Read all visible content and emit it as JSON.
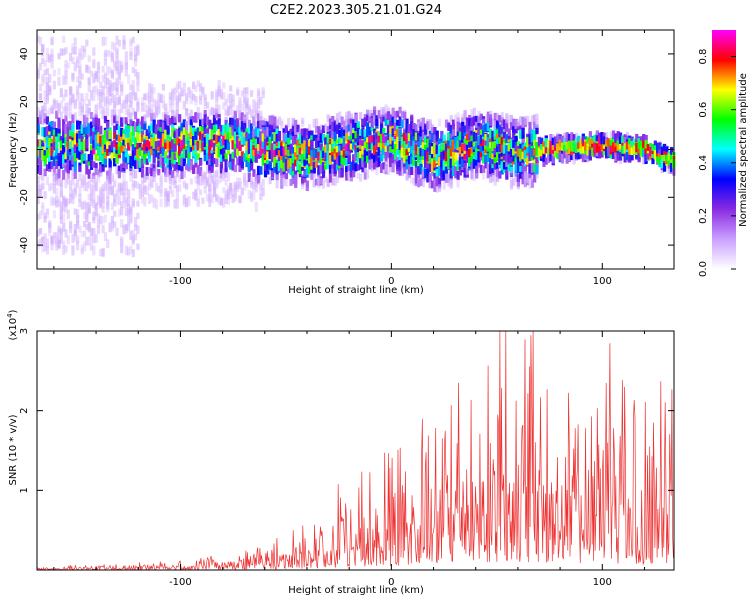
{
  "title": "C2E2.2023.305.21.01.G24",
  "chart_data": [
    {
      "type": "heatmap",
      "xlabel": "Height of straight line (km)",
      "ylabel": "Frequency (Hz)",
      "xlim": [
        -168,
        134
      ],
      "ylim": [
        -50,
        50
      ],
      "xticks": [
        -100,
        0,
        100
      ],
      "yticks": [
        -40,
        -20,
        0,
        20,
        40
      ],
      "colorbar": {
        "label": "Normalized spectral amplitude",
        "range": [
          0,
          0.9
        ],
        "ticks": [
          "0.0",
          "0.2",
          "0.4",
          "0.6",
          "0.8"
        ],
        "colors": [
          "#ffffff",
          "#c9a0ff",
          "#8a2be2",
          "#0000ff",
          "#00ffff",
          "#00ff00",
          "#ffff00",
          "#ff0000",
          "#ff00ff"
        ]
      },
      "ridge": [
        {
          "x": -160,
          "y": 2
        },
        {
          "x": -120,
          "y": 2
        },
        {
          "x": -80,
          "y": 3
        },
        {
          "x": -40,
          "y": -2
        },
        {
          "x": 0,
          "y": 5
        },
        {
          "x": 20,
          "y": -3
        },
        {
          "x": 40,
          "y": 3
        },
        {
          "x": 60,
          "y": -1
        },
        {
          "x": 80,
          "y": 1
        },
        {
          "x": 100,
          "y": 2
        },
        {
          "x": 120,
          "y": 1
        },
        {
          "x": 134,
          "y": -5
        }
      ]
    },
    {
      "type": "line",
      "xlabel": "Height of straight line (km)",
      "ylabel": "SNR (10 * v/v)",
      "y_multiplier": "(x10",
      "y_multiplier_exp": "4",
      "y_multiplier_close": ")",
      "xlim": [
        -168,
        134
      ],
      "ylim": [
        0,
        3
      ],
      "xticks": [
        -100,
        0,
        100
      ],
      "yticks": [
        1,
        2,
        3
      ],
      "color": "#ee3333",
      "envelope": [
        {
          "x": -168,
          "y": 0.02
        },
        {
          "x": -100,
          "y": 0.08
        },
        {
          "x": -60,
          "y": 0.2
        },
        {
          "x": -40,
          "y": 0.35
        },
        {
          "x": -20,
          "y": 0.7
        },
        {
          "x": 0,
          "y": 1.0
        },
        {
          "x": 20,
          "y": 1.5
        },
        {
          "x": 40,
          "y": 1.8
        },
        {
          "x": 60,
          "y": 2.0
        },
        {
          "x": 80,
          "y": 1.8
        },
        {
          "x": 100,
          "y": 1.6
        },
        {
          "x": 120,
          "y": 1.5
        },
        {
          "x": 134,
          "y": 1.7
        }
      ]
    }
  ]
}
